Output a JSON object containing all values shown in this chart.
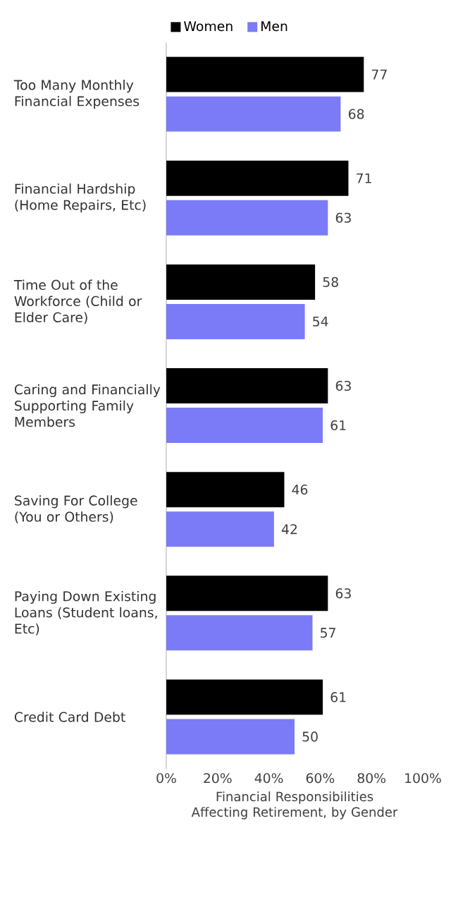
{
  "chart_data": {
    "type": "bar",
    "orientation": "horizontal",
    "xlabel": "Financial Responsibilities Affecting Retirement, by Gender",
    "categories": [
      "Too Many Monthly Financial Expenses",
      "Financial Hardship (Home Repairs, Etc)",
      "Time Out of the Workforce (Child or Elder Care)",
      "Caring and Financially Supporting Family Members",
      "Saving For College (You or Others)",
      "Paying Down Existing Loans (Student loans, Etc)",
      "Credit Card Debt"
    ],
    "series": [
      {
        "name": "Women",
        "color": "#000000",
        "values": [
          77,
          71,
          58,
          63,
          46,
          63,
          61
        ]
      },
      {
        "name": "Men",
        "color": "#7b7bf7",
        "values": [
          68,
          63,
          54,
          61,
          42,
          57,
          50
        ]
      }
    ],
    "xlim": [
      0,
      100
    ],
    "xticks": [
      {
        "value": 0,
        "label": "0%"
      },
      {
        "value": 20,
        "label": "20%"
      },
      {
        "value": 40,
        "label": "40%"
      },
      {
        "value": 60,
        "label": "60%"
      },
      {
        "value": 80,
        "label": "80%"
      },
      {
        "value": 100,
        "label": "100%"
      }
    ],
    "data_labels": true,
    "legend": "top",
    "grid": false
  }
}
